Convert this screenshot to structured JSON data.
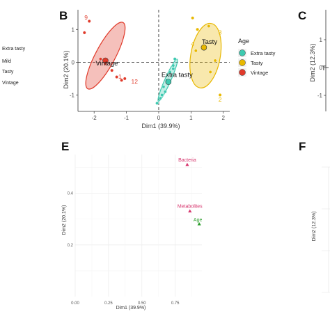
{
  "left_legend": [
    "Extra tasty",
    "Mild",
    "Tasty",
    "Vintage"
  ],
  "panels": {
    "B": "B",
    "C": "C",
    "E": "E",
    "F": "F"
  },
  "colors": {
    "extra_tasty": "#3ec9b0",
    "tasty": "#e8b800",
    "vintage": "#e03a2a",
    "bacteria": "#d6336c",
    "metabolites": "#d6336c",
    "age": "#2a9d2a"
  },
  "chart_data": [
    {
      "panel": "B",
      "type": "scatter",
      "xlabel": "Dim1 (39.9%)",
      "ylabel": "Dim2 (20.1%)",
      "xlim": [
        -2.5,
        2.2
      ],
      "ylim": [
        -1.5,
        1.6
      ],
      "xticks": [
        -2,
        -1,
        0,
        1,
        2
      ],
      "yticks": [
        -1,
        0,
        1
      ],
      "legend_title": "Age",
      "legend_position": "right",
      "series": [
        {
          "name": "Extra tasty",
          "color": "#3ec9b0",
          "points": [
            [
              0.05,
              -1.1
            ],
            [
              -0.05,
              -1.25
            ],
            [
              0.1,
              -1.0
            ],
            [
              0.15,
              -0.75
            ],
            [
              0.25,
              -0.55
            ],
            [
              0.35,
              -0.3
            ],
            [
              0.45,
              -0.1
            ],
            [
              0.5,
              0.1
            ],
            [
              0.45,
              -0.2
            ],
            [
              0.2,
              -0.9
            ]
          ],
          "centroid": [
            0.3,
            -0.6
          ],
          "centroid_label": "Extra tasty",
          "ellipse": {
            "cx": 0.28,
            "cy": -0.55,
            "rx": 0.95,
            "ry": 0.12,
            "angle": -66
          }
        },
        {
          "name": "Tasty",
          "color": "#e8b800",
          "points": [
            [
              1.05,
              1.35
            ],
            [
              1.2,
              1.0
            ],
            [
              1.55,
              1.1
            ],
            [
              1.15,
              0.35
            ],
            [
              1.75,
              0.05
            ],
            [
              1.6,
              -0.3
            ],
            [
              1.9,
              -1.0
            ],
            [
              1.45,
              0.45
            ]
          ],
          "centroid": [
            1.4,
            0.45
          ],
          "centroid_label": "Tasty",
          "ellipse": {
            "cx": 1.45,
            "cy": 0.2,
            "rx": 1.35,
            "ry": 0.6,
            "angle": -80
          },
          "point_labels": [
            {
              "text": "3",
              "at": [
                1.85,
                0.85
              ]
            },
            {
              "text": "4",
              "at": [
                1.0,
                0.5
              ]
            },
            {
              "text": "2",
              "at": [
                1.85,
                -1.2
              ]
            }
          ]
        },
        {
          "name": "Vintage",
          "color": "#e03a2a",
          "points": [
            [
              -2.15,
              1.25
            ],
            [
              -2.3,
              0.9
            ],
            [
              -1.8,
              0.1
            ],
            [
              -1.65,
              -0.05
            ],
            [
              -1.45,
              -0.25
            ],
            [
              -1.3,
              -0.45
            ],
            [
              -1.15,
              -0.55
            ],
            [
              -1.05,
              -0.5
            ]
          ],
          "centroid": [
            -1.65,
            0.05
          ],
          "centroid_label": "Vintage",
          "ellipse": {
            "cx": -1.65,
            "cy": 0.2,
            "rx": 1.55,
            "ry": 0.4,
            "angle": -62
          },
          "point_labels": [
            {
              "text": "9",
              "at": [
                -2.3,
                1.3
              ]
            },
            {
              "text": "12",
              "at": [
                -0.85,
                -0.65
              ]
            },
            {
              "text": "1",
              "at": [
                -1.25,
                -0.5
              ]
            }
          ]
        }
      ]
    },
    {
      "panel": "E",
      "type": "scatter",
      "xlabel": "Dim1 (39.9%)",
      "ylabel": "Dim2 (20.1%)",
      "xlim": [
        0,
        0.95
      ],
      "ylim": [
        0,
        0.55
      ],
      "xticks": [
        0.0,
        0.25,
        0.5,
        0.75
      ],
      "xtick_labels": [
        "0.00",
        "0.25",
        "0.50",
        "0.75"
      ],
      "yticks": [
        0.2,
        0.4
      ],
      "ytick_labels": [
        "0.2",
        "0.4"
      ],
      "points": [
        {
          "label": "Bacteria",
          "x": 0.84,
          "y": 0.51,
          "color": "#d6336c"
        },
        {
          "label": "Metabolites",
          "x": 0.86,
          "y": 0.33,
          "color": "#d6336c"
        },
        {
          "label": "Age",
          "x": 0.93,
          "y": 0.28,
          "color": "#2a9d2a"
        }
      ]
    },
    {
      "panel": "C",
      "type": "scatter",
      "ylabel": "Dim2 (12.3%)",
      "yticks": [
        1,
        0,
        -1
      ],
      "partial_label": "T"
    },
    {
      "panel": "F",
      "type": "scatter",
      "ylabel": "Dim2 (12.3%)"
    }
  ]
}
